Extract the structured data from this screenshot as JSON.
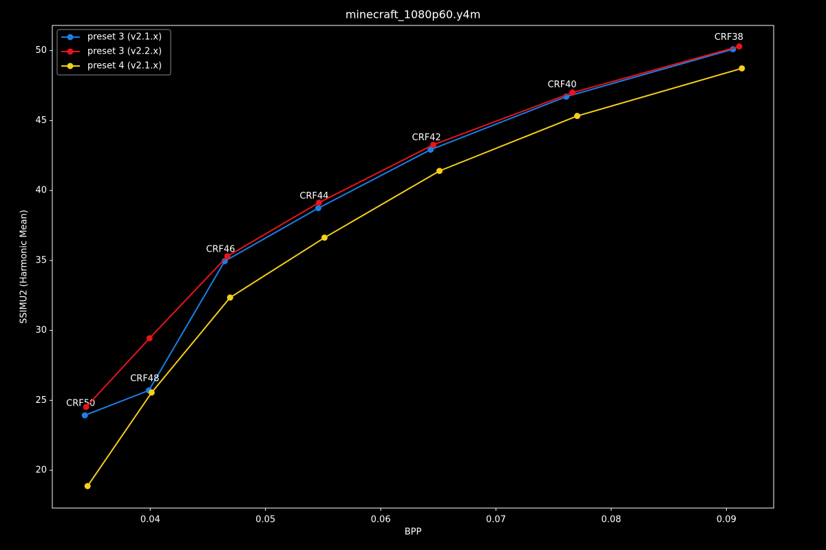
{
  "chart_data": {
    "type": "line",
    "title": "minecraft_1080p60.y4m",
    "x_label": "BPP",
    "y_label": "SSIMU2 (Harmonic Mean)",
    "xlim": [
      0.0315,
      0.0941
    ],
    "ylim": [
      17.3,
      51.8
    ],
    "xticks": [
      0.04,
      0.05,
      0.06,
      0.07,
      0.08,
      0.09
    ],
    "yticks": [
      20,
      25,
      30,
      35,
      40,
      45,
      50
    ],
    "legend": "upper left",
    "series": [
      {
        "name": "preset 3 (v2.1.x)",
        "color": "#1a7fe8",
        "x": [
          0.03432,
          0.03988,
          0.04646,
          0.05458,
          0.06433,
          0.0761,
          0.09057
        ],
        "values": [
          23.93,
          25.71,
          34.95,
          38.74,
          42.92,
          46.71,
          50.1
        ],
        "point_labels": [
          "CRF50",
          "CRF48",
          "CRF46",
          "CRF44",
          "CRF42",
          "CRF40",
          "CRF38"
        ]
      },
      {
        "name": "preset 3 (v2.2.x)",
        "color": "#e8141c",
        "x": [
          0.03444,
          0.03994,
          0.04669,
          0.05464,
          0.06456,
          0.07664,
          0.09111
        ],
        "values": [
          24.53,
          29.44,
          35.3,
          39.13,
          43.27,
          47.0,
          50.3
        ]
      },
      {
        "name": "preset 4 (v2.1.x)",
        "color": "#f5cf1a",
        "x": [
          0.03456,
          0.04012,
          0.04693,
          0.05512,
          0.0651,
          0.07705,
          0.09134
        ],
        "values": [
          18.87,
          25.56,
          32.35,
          36.63,
          41.4,
          45.33,
          48.73
        ]
      }
    ]
  }
}
